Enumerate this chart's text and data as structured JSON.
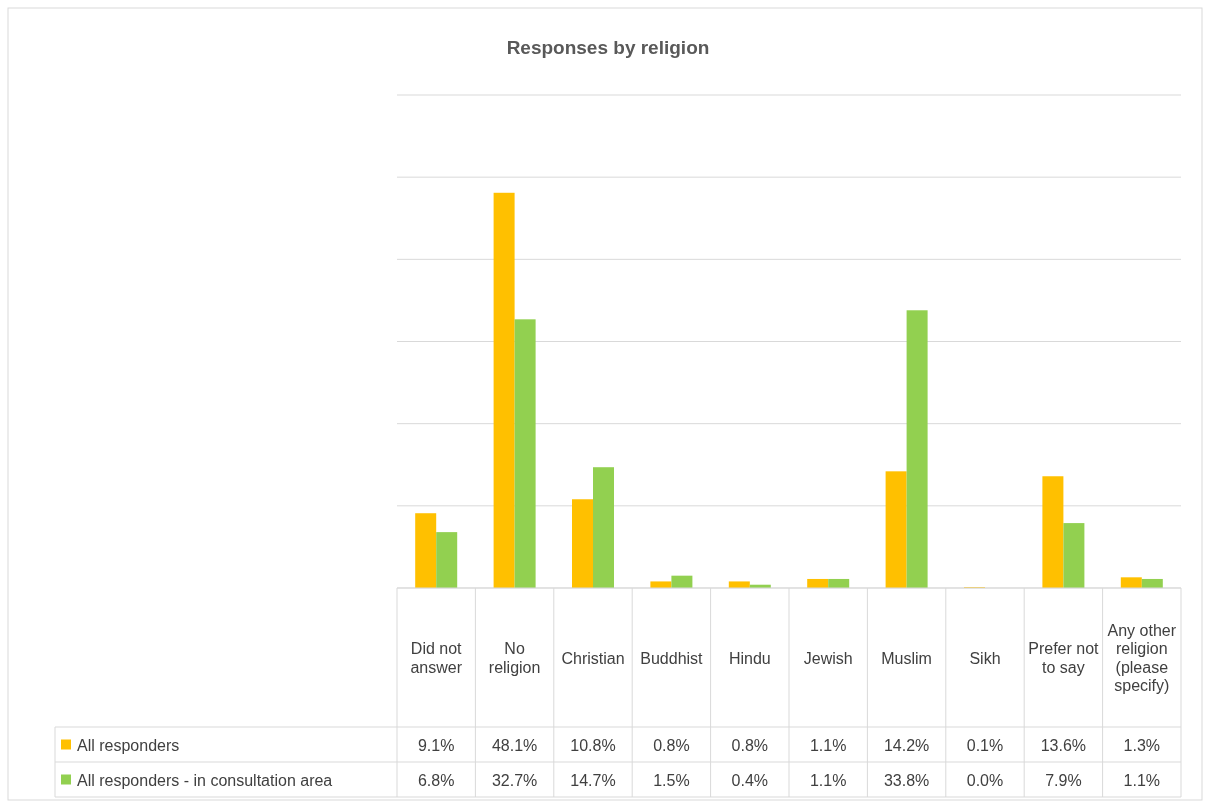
{
  "chart_data": {
    "type": "bar",
    "title": "Responses by religion",
    "categories": [
      "Did not answer",
      "No religion",
      "Christian",
      "Buddhist",
      "Hindu",
      "Jewish",
      "Muslim",
      "Sikh",
      "Prefer not to say",
      "Any other religion (please specify)"
    ],
    "series": [
      {
        "name": "All responders",
        "color": "#ffc000",
        "values": [
          9.1,
          48.1,
          10.8,
          0.8,
          0.8,
          1.1,
          14.2,
          0.1,
          13.6,
          1.3
        ],
        "value_labels": [
          "9.1%",
          "48.1%",
          "10.8%",
          "0.8%",
          "0.8%",
          "1.1%",
          "14.2%",
          "0.1%",
          "13.6%",
          "1.3%"
        ]
      },
      {
        "name": "All responders - in consultation area",
        "color": "#92d050",
        "values": [
          6.8,
          32.7,
          14.7,
          1.5,
          0.4,
          1.1,
          33.8,
          0.0,
          7.9,
          1.1
        ],
        "value_labels": [
          "6.8%",
          "32.7%",
          "14.7%",
          "1.5%",
          "0.4%",
          "1.1%",
          "33.8%",
          "0.0%",
          "7.9%",
          "1.1%"
        ]
      }
    ],
    "ylim": [
      0,
      60
    ],
    "yticks": [
      {
        "value": 0,
        "label": null
      },
      {
        "value": 10,
        "label": null
      },
      {
        "value": 20,
        "label": null
      },
      {
        "value": 30,
        "label": null
      },
      {
        "value": 40,
        "label": null
      },
      {
        "value": 50,
        "label": null
      },
      {
        "value": 60,
        "label": null
      }
    ],
    "grid": "y",
    "tick_labels": "x",
    "legend": "bottom"
  }
}
